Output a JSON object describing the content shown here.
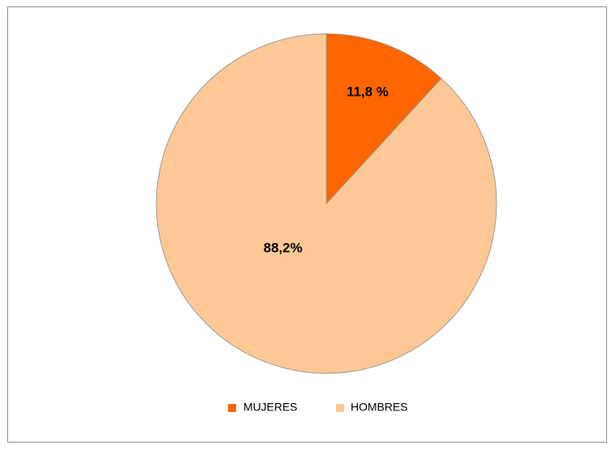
{
  "chart_data": {
    "type": "pie",
    "title": "",
    "start_angle_deg": 0,
    "direction": "clockwise",
    "slices": [
      {
        "name": "MUJERES",
        "value": 11.8,
        "label": "11,8 %",
        "color": "#ff6600"
      },
      {
        "name": "HOMBRES",
        "value": 88.2,
        "label": "88,2%",
        "color": "#fdc896"
      }
    ],
    "slice_border_color": "#8a8a8a",
    "legend": {
      "position": "bottom",
      "items": [
        "MUJERES",
        "HOMBRES"
      ]
    }
  }
}
